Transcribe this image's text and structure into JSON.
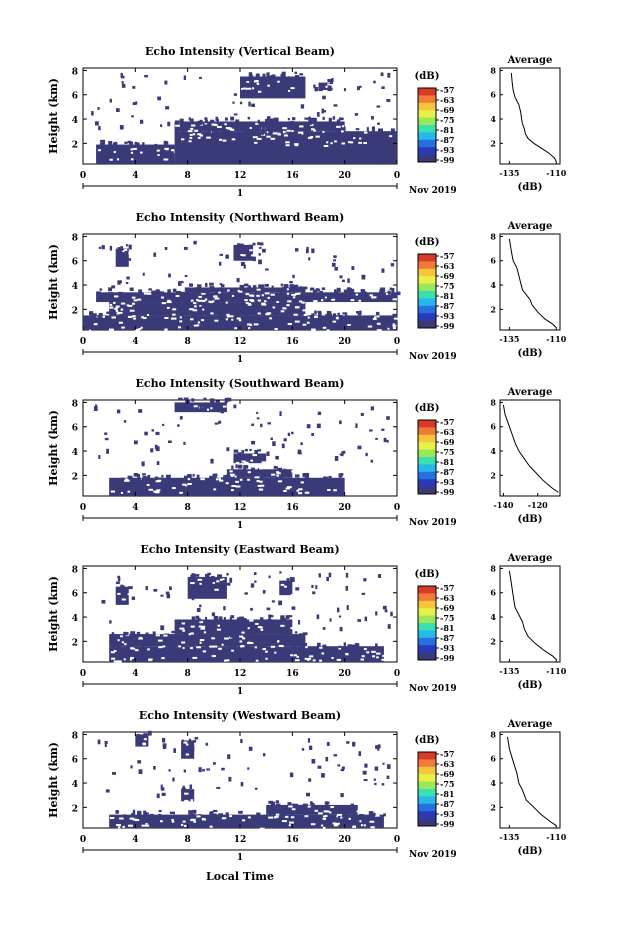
{
  "chart_data": [
    {
      "type": "heatmap",
      "title": "Echo Intensity (Vertical Beam)",
      "ylabel": "Height (km)",
      "x_ticks": [
        "0",
        "4",
        "8",
        "12",
        "16",
        "20",
        "0"
      ],
      "y_ticks": [
        "2",
        "4",
        "6",
        "8"
      ],
      "day_label": "1",
      "date_label": "Nov 2019",
      "colorbar": {
        "unit": "(dB)",
        "ticks": [
          "-57",
          "-63",
          "-69",
          "-75",
          "-81",
          "-87",
          "-93",
          "-99"
        ]
      },
      "shaded_regions": [
        {
          "x": [
            1,
            7
          ],
          "y": [
            0.3,
            1.9
          ]
        },
        {
          "x": [
            7,
            24
          ],
          "y": [
            0.3,
            3.0
          ]
        },
        {
          "x": [
            7,
            20
          ],
          "y": [
            3.0,
            3.8
          ]
        },
        {
          "x": [
            12,
            17
          ],
          "y": [
            5.7,
            7.5
          ]
        },
        {
          "x": [
            18,
            19
          ],
          "y": [
            6.3,
            7.0
          ]
        }
      ],
      "profile": {
        "title": "Average",
        "xlabel": "(dB)",
        "x_ticks": [
          "-135",
          "-110"
        ],
        "xlim": [
          -140,
          -108
        ],
        "y_ticks": [
          "2",
          "4",
          "6",
          "8"
        ],
        "ylim": [
          0.3,
          8.2
        ],
        "points": [
          [
            -134,
            7.8
          ],
          [
            -133.5,
            7.0
          ],
          [
            -133,
            6.4
          ],
          [
            -132,
            5.8
          ],
          [
            -130,
            5.2
          ],
          [
            -129,
            4.6
          ],
          [
            -128.5,
            4.0
          ],
          [
            -128,
            3.6
          ],
          [
            -127,
            3.2
          ],
          [
            -126.5,
            2.8
          ],
          [
            -125,
            2.4
          ],
          [
            -122,
            2.0
          ],
          [
            -118,
            1.6
          ],
          [
            -114,
            1.2
          ],
          [
            -111,
            0.8
          ],
          [
            -110,
            0.5
          ]
        ]
      }
    },
    {
      "type": "heatmap",
      "title": "Echo Intensity (Northward Beam)",
      "ylabel": "Height (km)",
      "x_ticks": [
        "0",
        "4",
        "8",
        "12",
        "16",
        "20",
        "0"
      ],
      "y_ticks": [
        "2",
        "4",
        "6",
        "8"
      ],
      "day_label": "1",
      "date_label": "Nov 2019",
      "colorbar": {
        "unit": "(dB)",
        "ticks": [
          "-57",
          "-63",
          "-69",
          "-75",
          "-81",
          "-87",
          "-93",
          "-99"
        ]
      },
      "shaded_regions": [
        {
          "x": [
            0,
            24
          ],
          "y": [
            0.3,
            1.5
          ]
        },
        {
          "x": [
            2,
            17
          ],
          "y": [
            1.5,
            2.6
          ]
        },
        {
          "x": [
            1,
            24
          ],
          "y": [
            2.6,
            3.4
          ]
        },
        {
          "x": [
            8,
            17
          ],
          "y": [
            3.4,
            3.8
          ]
        },
        {
          "x": [
            2.5,
            3.5
          ],
          "y": [
            5.5,
            7.0
          ]
        },
        {
          "x": [
            11.5,
            13
          ],
          "y": [
            6.0,
            7.3
          ]
        }
      ],
      "profile": {
        "title": "Average",
        "xlabel": "(dB)",
        "x_ticks": [
          "-135",
          "-110"
        ],
        "xlim": [
          -140,
          -108
        ],
        "y_ticks": [
          "2",
          "4",
          "6",
          "8"
        ],
        "ylim": [
          0.3,
          8.2
        ],
        "points": [
          [
            -135,
            7.8
          ],
          [
            -134,
            6.8
          ],
          [
            -133,
            6.0
          ],
          [
            -131,
            5.4
          ],
          [
            -130,
            4.8
          ],
          [
            -129,
            4.2
          ],
          [
            -128,
            3.6
          ],
          [
            -126,
            3.2
          ],
          [
            -124,
            2.8
          ],
          [
            -123,
            2.4
          ],
          [
            -120,
            1.8
          ],
          [
            -116,
            1.2
          ],
          [
            -112,
            0.8
          ],
          [
            -110,
            0.5
          ]
        ]
      }
    },
    {
      "type": "heatmap",
      "title": "Echo Intensity (Southward Beam)",
      "ylabel": "Height (km)",
      "x_ticks": [
        "0",
        "4",
        "8",
        "12",
        "16",
        "20",
        "0"
      ],
      "y_ticks": [
        "2",
        "4",
        "6",
        "8"
      ],
      "day_label": "1",
      "date_label": "Nov 2019",
      "colorbar": {
        "unit": "(dB)",
        "ticks": [
          "-57",
          "-63",
          "-69",
          "-75",
          "-81",
          "-87",
          "-93",
          "-99"
        ]
      },
      "shaded_regions": [
        {
          "x": [
            2,
            20
          ],
          "y": [
            0.3,
            1.8
          ]
        },
        {
          "x": [
            11,
            16
          ],
          "y": [
            1.8,
            2.5
          ]
        },
        {
          "x": [
            11.5,
            14
          ],
          "y": [
            3.0,
            3.8
          ]
        },
        {
          "x": [
            7,
            11
          ],
          "y": [
            7.2,
            8.0
          ]
        }
      ],
      "profile": {
        "title": "Average",
        "xlabel": "(dB)",
        "x_ticks": [
          "-140",
          "-120"
        ],
        "xlim": [
          -142,
          -107
        ],
        "y_ticks": [
          "2",
          "4",
          "6",
          "8"
        ],
        "ylim": [
          0.3,
          8.2
        ],
        "points": [
          [
            -140,
            7.8
          ],
          [
            -139,
            7.0
          ],
          [
            -137,
            6.2
          ],
          [
            -135,
            5.4
          ],
          [
            -133,
            4.6
          ],
          [
            -131,
            4.0
          ],
          [
            -128,
            3.4
          ],
          [
            -125,
            2.8
          ],
          [
            -121,
            2.2
          ],
          [
            -117,
            1.6
          ],
          [
            -112,
            1.0
          ],
          [
            -108,
            0.6
          ]
        ]
      }
    },
    {
      "type": "heatmap",
      "title": "Echo Intensity (Eastward Beam)",
      "ylabel": "Height (km)",
      "x_ticks": [
        "0",
        "4",
        "8",
        "12",
        "16",
        "20",
        "0"
      ],
      "y_ticks": [
        "2",
        "4",
        "6",
        "8"
      ],
      "day_label": "1",
      "date_label": "Nov 2019",
      "colorbar": {
        "unit": "(dB)",
        "ticks": [
          "-57",
          "-63",
          "-69",
          "-75",
          "-81",
          "-87",
          "-93",
          "-99"
        ]
      },
      "shaded_regions": [
        {
          "x": [
            2,
            23
          ],
          "y": [
            0.3,
            1.6
          ]
        },
        {
          "x": [
            2,
            17
          ],
          "y": [
            1.6,
            2.6
          ]
        },
        {
          "x": [
            7,
            16
          ],
          "y": [
            2.6,
            3.8
          ]
        },
        {
          "x": [
            8,
            11
          ],
          "y": [
            5.5,
            7.3
          ]
        },
        {
          "x": [
            2.5,
            3.5
          ],
          "y": [
            5.0,
            6.5
          ]
        },
        {
          "x": [
            15,
            16
          ],
          "y": [
            5.8,
            7.0
          ]
        }
      ],
      "profile": {
        "title": "Average",
        "xlabel": "(dB)",
        "x_ticks": [
          "-135",
          "-110"
        ],
        "xlim": [
          -140,
          -108
        ],
        "y_ticks": [
          "2",
          "4",
          "6",
          "8"
        ],
        "ylim": [
          0.3,
          8.2
        ],
        "points": [
          [
            -135,
            7.8
          ],
          [
            -134,
            6.8
          ],
          [
            -133,
            5.8
          ],
          [
            -132,
            4.8
          ],
          [
            -130,
            4.2
          ],
          [
            -128,
            3.6
          ],
          [
            -127,
            3.0
          ],
          [
            -125,
            2.4
          ],
          [
            -121,
            1.8
          ],
          [
            -116,
            1.2
          ],
          [
            -112,
            0.8
          ],
          [
            -110,
            0.5
          ]
        ]
      }
    },
    {
      "type": "heatmap",
      "title": "Echo Intensity (Westward Beam)",
      "ylabel": "Height (km)",
      "x_ticks": [
        "0",
        "4",
        "8",
        "12",
        "16",
        "20",
        "0"
      ],
      "y_ticks": [
        "2",
        "4",
        "6",
        "8"
      ],
      "day_label": "1",
      "date_label": "Nov 2019",
      "colorbar": {
        "unit": "(dB)",
        "ticks": [
          "-57",
          "-63",
          "-69",
          "-75",
          "-81",
          "-87",
          "-93",
          "-99"
        ]
      },
      "shaded_regions": [
        {
          "x": [
            2,
            23
          ],
          "y": [
            0.3,
            1.4
          ]
        },
        {
          "x": [
            14,
            21
          ],
          "y": [
            1.4,
            2.2
          ]
        },
        {
          "x": [
            7.5,
            8.5
          ],
          "y": [
            2.5,
            3.5
          ]
        },
        {
          "x": [
            4,
            5
          ],
          "y": [
            7.0,
            8.0
          ]
        },
        {
          "x": [
            7.5,
            8.5
          ],
          "y": [
            6.0,
            7.5
          ]
        }
      ],
      "profile": {
        "title": "Average",
        "xlabel": "(dB)",
        "x_ticks": [
          "-135",
          "-110"
        ],
        "xlim": [
          -140,
          -108
        ],
        "y_ticks": [
          "2",
          "4",
          "6",
          "8"
        ],
        "ylim": [
          0.3,
          8.2
        ],
        "points": [
          [
            -136,
            7.8
          ],
          [
            -135,
            6.8
          ],
          [
            -133,
            5.8
          ],
          [
            -131,
            4.8
          ],
          [
            -130,
            4.0
          ],
          [
            -128,
            3.4
          ],
          [
            -126,
            2.6
          ],
          [
            -122,
            2.0
          ],
          [
            -118,
            1.4
          ],
          [
            -113,
            0.8
          ],
          [
            -110,
            0.5
          ]
        ]
      }
    }
  ],
  "footer": {
    "xlabel": "Local Time"
  },
  "colors": {
    "echo": "#3a3a78",
    "colorbar": [
      "#d83a28",
      "#f07a3a",
      "#f5c63a",
      "#e8f04a",
      "#9ae85a",
      "#3ae0b0",
      "#28b8e8",
      "#2870e0",
      "#2a3ab8",
      "#3a3a78"
    ]
  }
}
